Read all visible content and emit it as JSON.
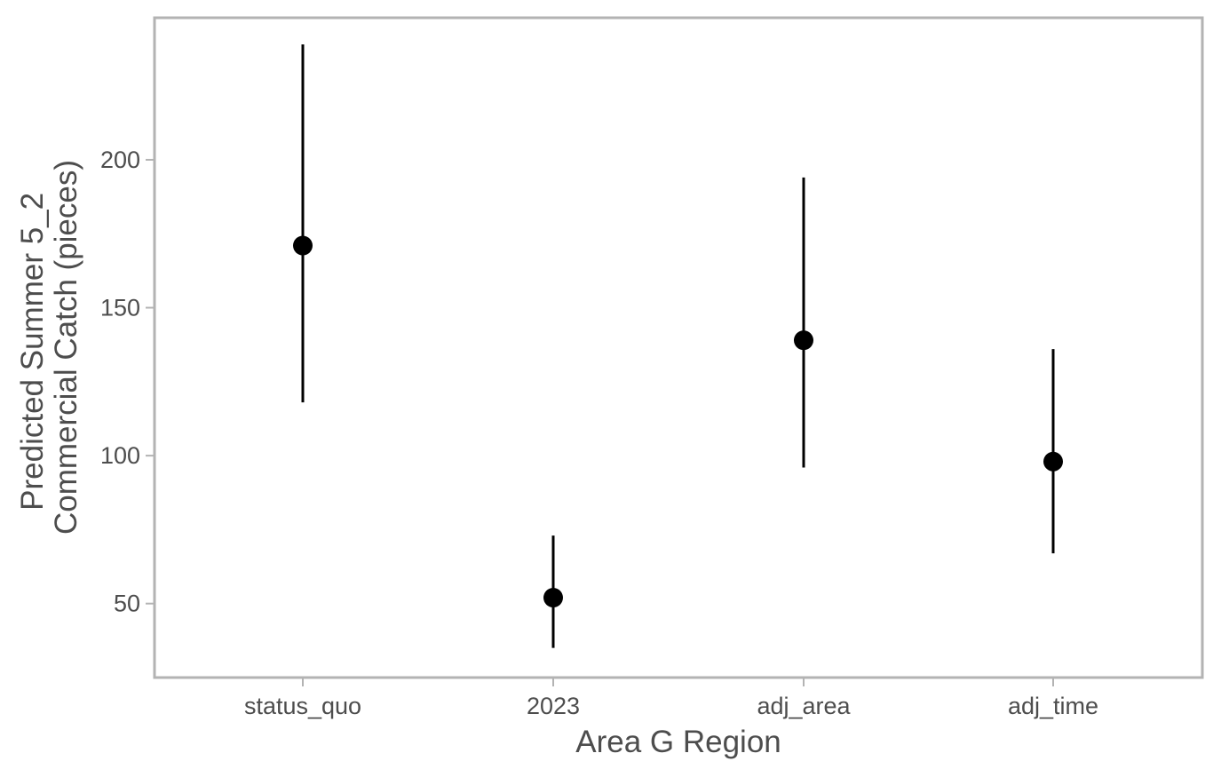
{
  "chart_data": {
    "type": "scatter",
    "subtype": "pointrange",
    "title": "",
    "xlabel": "Area G Region",
    "ylabel_lines": [
      "Predicted Summer 5_2",
      "Commercial Catch (pieces)"
    ],
    "categories": [
      "status_quo",
      "2023",
      "adj_area",
      "adj_time"
    ],
    "series": [
      {
        "estimate": [
          171,
          52,
          139,
          98
        ],
        "lower": [
          118,
          35,
          96,
          67
        ],
        "upper": [
          239,
          73,
          194,
          136
        ]
      }
    ],
    "y_ticks": [
      50,
      100,
      150,
      200
    ],
    "y_tick_labels": [
      "50",
      "100",
      "150",
      "200"
    ],
    "ylim": [
      25,
      248
    ],
    "grid": false,
    "legend": "none",
    "colors": {
      "point": "#000000",
      "errorbar": "#000000",
      "panel_border": "#b3b3b3",
      "tick": "#b3b3b3",
      "text": "#4d4d4d"
    }
  }
}
